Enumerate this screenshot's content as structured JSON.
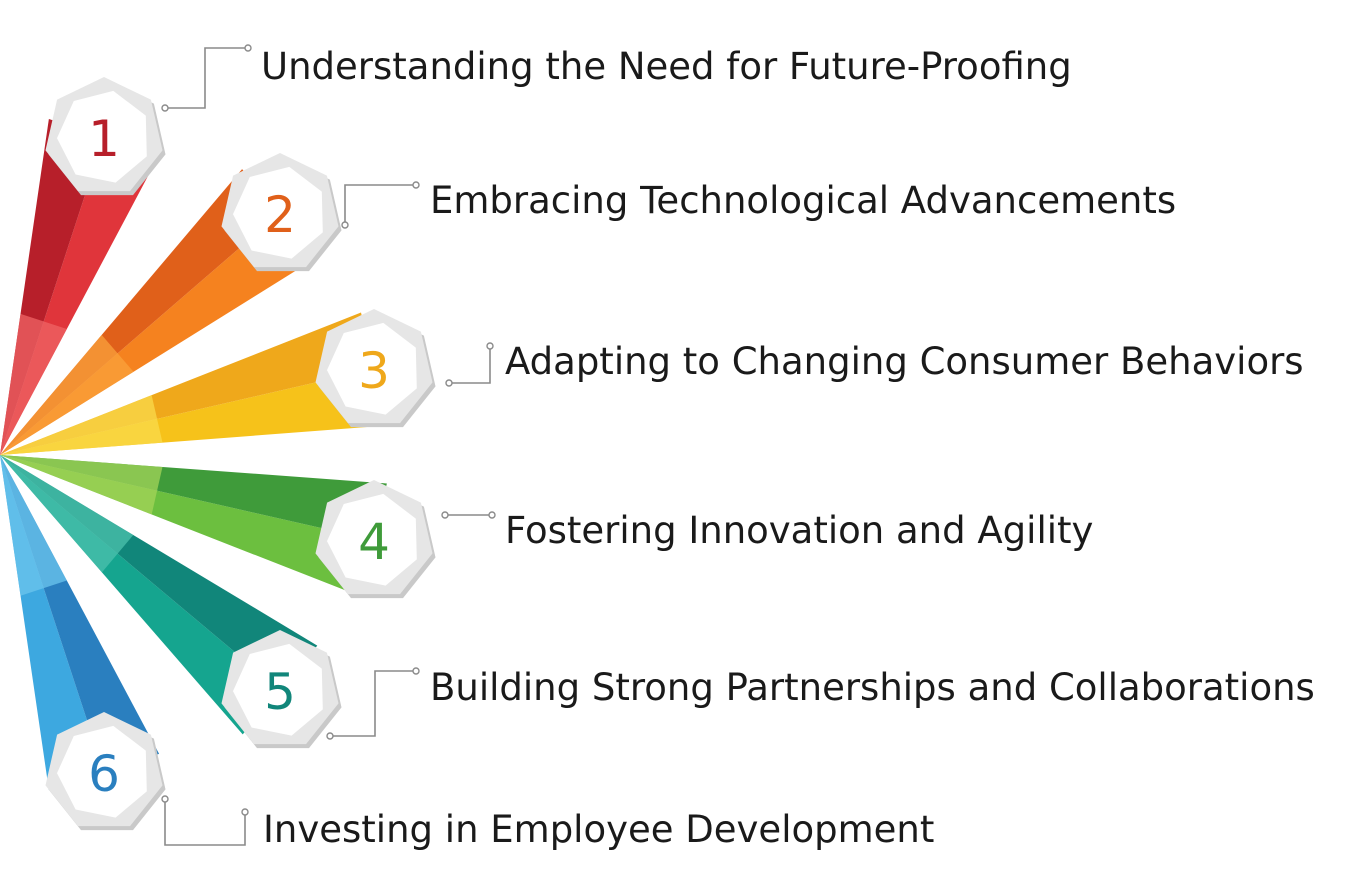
{
  "steps": [
    {
      "number": "1",
      "label": "Understanding the Need for Future-Proofing",
      "color": "#e0353b",
      "dark": "#b71f2a",
      "light": "#ef6466"
    },
    {
      "number": "2",
      "label": "Embracing Technological Advancements",
      "color": "#f5821f",
      "dark": "#e0601a",
      "light": "#f9a23c"
    },
    {
      "number": "3",
      "label": "Adapting to Changing Consumer Behaviors",
      "color": "#f6c21a",
      "dark": "#efa81b",
      "light": "#fadb4c"
    },
    {
      "number": "4",
      "label": "Fostering Innovation and Agility",
      "color": "#6cbf3f",
      "dark": "#3f9b3a",
      "light": "#a4d45a"
    },
    {
      "number": "5",
      "label": "Building Strong Partnerships and Collaborations",
      "color": "#15a58f",
      "dark": "#11867a",
      "light": "#4cc2ad"
    },
    {
      "number": "6",
      "label": "Investing in Employee Development",
      "color": "#3da8e0",
      "dark": "#2a7fbf",
      "light": "#6cc6ee"
    }
  ]
}
